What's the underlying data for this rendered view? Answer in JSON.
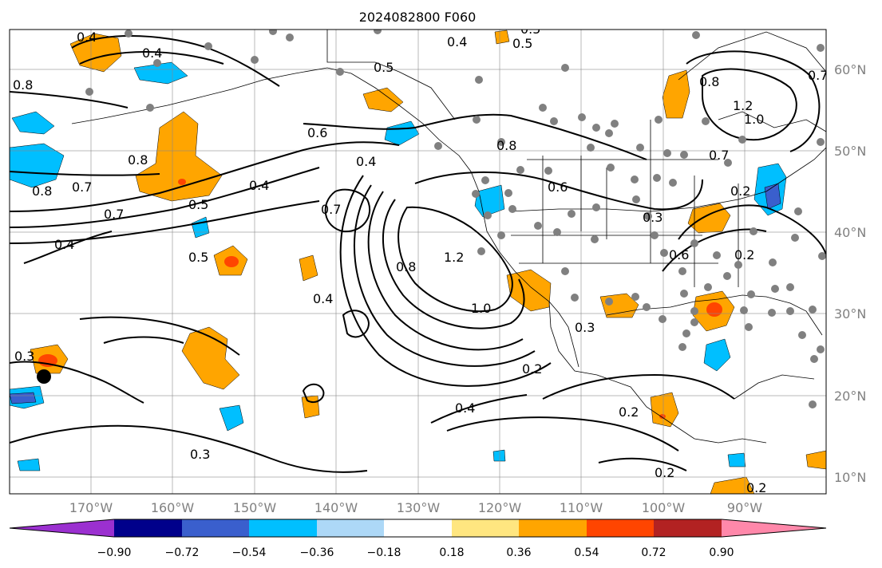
{
  "title": "2024082800 F060",
  "map": {
    "lon_range": [
      -180,
      -80
    ],
    "lat_range": [
      8,
      65
    ],
    "lon_ticks": [
      "170°W",
      "160°W",
      "150°W",
      "140°W",
      "130°W",
      "120°W",
      "110°W",
      "100°W",
      "90°W"
    ],
    "lat_ticks": [
      "60°N",
      "50°N",
      "40°N",
      "30°N",
      "20°N",
      "10°N"
    ],
    "grid": true,
    "tick_color": "#808080"
  },
  "colorbar": {
    "labels": [
      "−0.90",
      "−0.72",
      "−0.54",
      "−0.36",
      "−0.18",
      "0.18",
      "0.36",
      "0.54",
      "0.72",
      "0.90"
    ],
    "colors": [
      "#9b30d0",
      "#00008b",
      "#3a5fcd",
      "#00bfff",
      "#add8f7",
      "#ffffff",
      "#ffe680",
      "#ffa500",
      "#ff4500",
      "#b22222",
      "#ff88aa"
    ]
  },
  "contour_labels": [
    "0.4",
    "0.4",
    "0.8",
    "0.8",
    "0.7",
    "0.8",
    "0.7",
    "0.4",
    "0.6",
    "0.4",
    "0.5",
    "0.4",
    "0.5",
    "0.4",
    "0.7",
    "0.8",
    "1.2",
    "1.0",
    "0.2",
    "0.4",
    "0.3",
    "0.2",
    "0.3",
    "0.4",
    "0.5",
    "0.8",
    "0.6",
    "0.3",
    "0.5",
    "0.6",
    "0.2",
    "0.3",
    "0.2",
    "0.2",
    "0.2",
    "1.2",
    "1.0",
    "0.7",
    "0.8",
    "0.7",
    "0.5"
  ]
}
